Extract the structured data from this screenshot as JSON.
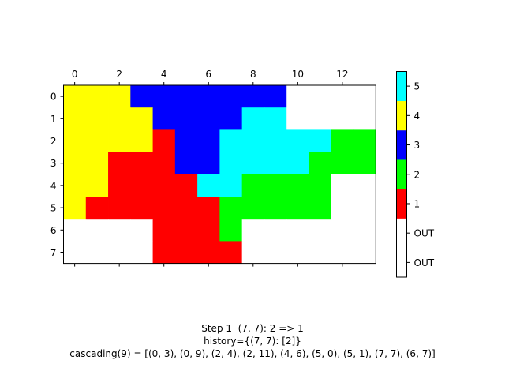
{
  "chart_data": [
    {
      "type": "heatmap",
      "x_ticks": [
        0,
        2,
        4,
        6,
        8,
        10,
        12
      ],
      "y_ticks": [
        0,
        1,
        2,
        3,
        4,
        5,
        6,
        7
      ],
      "xlim": [
        -0.5,
        13.5
      ],
      "ylim": [
        -0.5,
        7.5
      ],
      "x_axis_position": "top",
      "grid": false,
      "values": [
        [
          4,
          4,
          4,
          3,
          3,
          3,
          3,
          3,
          3,
          3,
          0,
          0,
          0,
          0
        ],
        [
          4,
          4,
          4,
          4,
          3,
          3,
          3,
          3,
          5,
          5,
          0,
          0,
          0,
          0
        ],
        [
          4,
          4,
          4,
          4,
          1,
          3,
          3,
          5,
          5,
          5,
          5,
          5,
          2,
          2
        ],
        [
          4,
          4,
          1,
          1,
          1,
          3,
          3,
          5,
          5,
          5,
          5,
          2,
          2,
          2
        ],
        [
          4,
          4,
          1,
          1,
          1,
          1,
          5,
          5,
          2,
          2,
          2,
          2,
          0,
          0
        ],
        [
          4,
          1,
          1,
          1,
          1,
          1,
          1,
          2,
          2,
          2,
          2,
          2,
          0,
          0
        ],
        [
          0,
          0,
          0,
          0,
          1,
          1,
          1,
          2,
          0,
          0,
          0,
          0,
          0,
          0
        ],
        [
          0,
          0,
          0,
          0,
          1,
          1,
          1,
          1,
          0,
          0,
          0,
          0,
          0,
          0
        ]
      ],
      "color_map": {
        "0": "#ffffff",
        "1": "#ff0000",
        "2": "#00ff00",
        "3": "#0000ff",
        "4": "#ffff00",
        "5": "#00ffff"
      }
    },
    {
      "type": "colorbar",
      "segments": [
        {
          "color": "#ffffff",
          "label": "OUT"
        },
        {
          "color": "#ffffff",
          "label": "OUT"
        },
        {
          "color": "#ff0000",
          "label": "1"
        },
        {
          "color": "#00ff00",
          "label": "2"
        },
        {
          "color": "#0000ff",
          "label": "3"
        },
        {
          "color": "#ffff00",
          "label": "4"
        },
        {
          "color": "#00ffff",
          "label": "5"
        }
      ]
    }
  ],
  "caption": {
    "line1": "Step 1  (7, 7): 2 => 1",
    "line2": "history={(7, 7): [2]}",
    "line3": "cascading(9) = [(0, 3), (0, 9), (2, 4), (2, 11), (4, 6), (5, 0), (5, 1), (7, 7), (6, 7)]"
  }
}
